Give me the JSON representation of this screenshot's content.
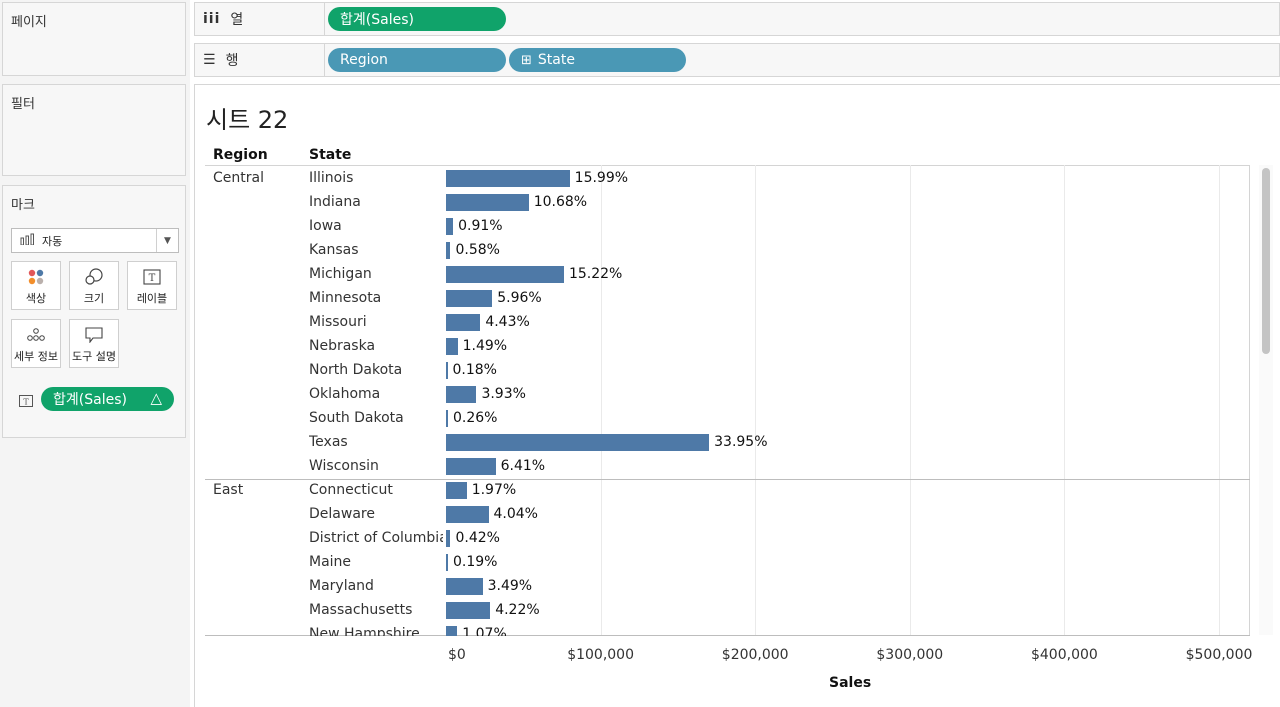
{
  "left_panel": {
    "pages_title": "페이지",
    "filters_title": "필터",
    "marks_title": "마크",
    "mark_type": "자동",
    "buttons": {
      "color": "색상",
      "size": "크기",
      "label": "레이블",
      "detail": "세부 정보",
      "tooltip": "도구 설명"
    },
    "mark_pill": "합계(Sales)"
  },
  "shelves": {
    "columns_label": "열",
    "columns_pill": "합계(Sales)",
    "rows_label": "행",
    "rows_pills": [
      "Region",
      "State"
    ]
  },
  "sheet": {
    "title": "시트 22",
    "headers": {
      "region": "Region",
      "state": "State"
    }
  },
  "chart_data": {
    "type": "bar",
    "orientation": "horizontal",
    "measure": "Sales",
    "label_kind": "percent of region total",
    "xlabel": "Sales",
    "xlim": [
      0,
      520000
    ],
    "x_ticks": [
      "$0",
      "$100,000",
      "$200,000",
      "$300,000",
      "$400,000",
      "$500,000"
    ],
    "x_tick_values": [
      0,
      100000,
      200000,
      300000,
      400000,
      500000
    ],
    "groups": [
      {
        "region": "Central",
        "rows": [
          {
            "state": "Illinois",
            "sales": 80000,
            "label": "15.99%"
          },
          {
            "state": "Indiana",
            "sales": 53500,
            "label": "10.68%"
          },
          {
            "state": "Iowa",
            "sales": 4600,
            "label": "0.91%"
          },
          {
            "state": "Kansas",
            "sales": 2900,
            "label": "0.58%"
          },
          {
            "state": "Michigan",
            "sales": 76300,
            "label": "15.22%"
          },
          {
            "state": "Minnesota",
            "sales": 29900,
            "label": "5.96%"
          },
          {
            "state": "Missouri",
            "sales": 22200,
            "label": "4.43%"
          },
          {
            "state": "Nebraska",
            "sales": 7500,
            "label": "1.49%"
          },
          {
            "state": "North Dakota",
            "sales": 900,
            "label": "0.18%"
          },
          {
            "state": "Oklahoma",
            "sales": 19700,
            "label": "3.93%"
          },
          {
            "state": "South Dakota",
            "sales": 1300,
            "label": "0.26%"
          },
          {
            "state": "Texas",
            "sales": 170200,
            "label": "33.95%"
          },
          {
            "state": "Wisconsin",
            "sales": 32100,
            "label": "6.41%"
          }
        ]
      },
      {
        "region": "East",
        "rows": [
          {
            "state": "Connecticut",
            "sales": 13400,
            "label": "1.97%"
          },
          {
            "state": "Delaware",
            "sales": 27500,
            "label": "4.04%"
          },
          {
            "state": "District of Columbia",
            "sales": 2900,
            "label": "0.42%"
          },
          {
            "state": "Maine",
            "sales": 1300,
            "label": "0.19%"
          },
          {
            "state": "Maryland",
            "sales": 23700,
            "label": "3.49%"
          },
          {
            "state": "Massachusetts",
            "sales": 28600,
            "label": "4.22%"
          },
          {
            "state": "New Hampshire",
            "sales": 7300,
            "label": "1.07%"
          }
        ]
      }
    ]
  }
}
